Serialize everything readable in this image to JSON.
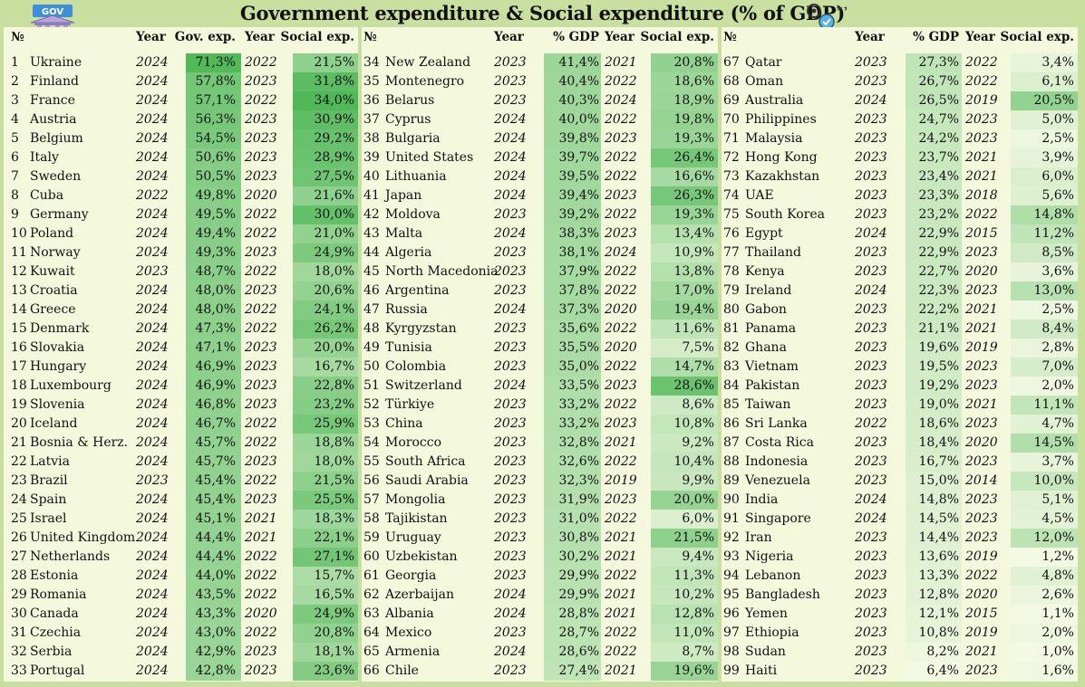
{
  "title": "Government expenditure & Social expenditure (% of GDP)",
  "logo_text": "GOV",
  "icons": {
    "left": "government-building-icon",
    "right": "hand-gear-coin-icon"
  },
  "colors": {
    "accent_green": "#4cb64c",
    "background": "#f4f8dc",
    "frame": "#c8dfa0"
  },
  "columns": [
    {
      "rank": "№",
      "year1": "Year",
      "value1": "Gov. exp.",
      "year2": "Year",
      "value2": "Social exp."
    },
    {
      "rank": "№",
      "year1": "Year",
      "value1": "% GDP",
      "year2": "Year",
      "value2": "Social exp."
    },
    {
      "rank": "№",
      "year1": "Year",
      "value1": "% GDP",
      "year2": "Year",
      "value2": "Social exp."
    }
  ],
  "rows": [
    [
      "1",
      "Ukraine",
      "2024",
      "71,3%",
      "2022",
      "21,5%"
    ],
    [
      "2",
      "Finland",
      "2024",
      "57,8%",
      "2023",
      "31,8%"
    ],
    [
      "3",
      "France",
      "2024",
      "57,1%",
      "2022",
      "34,0%"
    ],
    [
      "4",
      "Austria",
      "2024",
      "56,3%",
      "2023",
      "30,9%"
    ],
    [
      "5",
      "Belgium",
      "2024",
      "54,5%",
      "2023",
      "29,2%"
    ],
    [
      "6",
      "Italy",
      "2024",
      "50,6%",
      "2023",
      "28,9%"
    ],
    [
      "7",
      "Sweden",
      "2024",
      "50,5%",
      "2023",
      "27,5%"
    ],
    [
      "8",
      "Cuba",
      "2022",
      "49,8%",
      "2020",
      "21,6%"
    ],
    [
      "9",
      "Germany",
      "2024",
      "49,5%",
      "2022",
      "30,0%"
    ],
    [
      "10",
      "Poland",
      "2024",
      "49,4%",
      "2022",
      "21,0%"
    ],
    [
      "11",
      "Norway",
      "2024",
      "49,3%",
      "2023",
      "24,9%"
    ],
    [
      "12",
      "Kuwait",
      "2023",
      "48,7%",
      "2022",
      "18,0%"
    ],
    [
      "13",
      "Croatia",
      "2024",
      "48,0%",
      "2023",
      "20,6%"
    ],
    [
      "14",
      "Greece",
      "2024",
      "48,0%",
      "2022",
      "24,1%"
    ],
    [
      "15",
      "Denmark",
      "2024",
      "47,3%",
      "2022",
      "26,2%"
    ],
    [
      "16",
      "Slovakia",
      "2024",
      "47,1%",
      "2023",
      "20,0%"
    ],
    [
      "17",
      "Hungary",
      "2024",
      "46,9%",
      "2023",
      "16,7%"
    ],
    [
      "18",
      "Luxembourg",
      "2024",
      "46,9%",
      "2023",
      "22,8%"
    ],
    [
      "19",
      "Slovenia",
      "2024",
      "46,8%",
      "2023",
      "23,2%"
    ],
    [
      "20",
      "Iceland",
      "2024",
      "46,7%",
      "2022",
      "25,9%"
    ],
    [
      "21",
      "Bosnia & Herz.",
      "2024",
      "45,7%",
      "2022",
      "18,8%"
    ],
    [
      "22",
      "Latvia",
      "2024",
      "45,7%",
      "2023",
      "18,0%"
    ],
    [
      "23",
      "Brazil",
      "2023",
      "45,4%",
      "2022",
      "21,5%"
    ],
    [
      "24",
      "Spain",
      "2024",
      "45,4%",
      "2023",
      "25,5%"
    ],
    [
      "25",
      "Israel",
      "2024",
      "45,1%",
      "2021",
      "18,3%"
    ],
    [
      "26",
      "United Kingdom",
      "2024",
      "44,4%",
      "2021",
      "22,1%"
    ],
    [
      "27",
      "Netherlands",
      "2024",
      "44,4%",
      "2022",
      "27,1%"
    ],
    [
      "28",
      "Estonia",
      "2024",
      "44,0%",
      "2022",
      "15,7%"
    ],
    [
      "29",
      "Romania",
      "2024",
      "43,5%",
      "2022",
      "16,5%"
    ],
    [
      "30",
      "Canada",
      "2024",
      "43,3%",
      "2020",
      "24,9%"
    ],
    [
      "31",
      "Czechia",
      "2024",
      "43,0%",
      "2022",
      "20,8%"
    ],
    [
      "32",
      "Serbia",
      "2024",
      "42,9%",
      "2023",
      "18,1%"
    ],
    [
      "33",
      "Portugal",
      "2024",
      "42,8%",
      "2023",
      "23,6%"
    ],
    [
      "34",
      "New Zealand",
      "2023",
      "41,4%",
      "2021",
      "20,8%"
    ],
    [
      "35",
      "Montenegro",
      "2023",
      "40,4%",
      "2022",
      "18,6%"
    ],
    [
      "36",
      "Belarus",
      "2023",
      "40,3%",
      "2024",
      "18,9%"
    ],
    [
      "37",
      "Cyprus",
      "2024",
      "40,0%",
      "2022",
      "19,8%"
    ],
    [
      "38",
      "Bulgaria",
      "2024",
      "39,8%",
      "2023",
      "19,3%"
    ],
    [
      "39",
      "United States",
      "2024",
      "39,7%",
      "2022",
      "26,4%"
    ],
    [
      "40",
      "Lithuania",
      "2024",
      "39,5%",
      "2022",
      "16,6%"
    ],
    [
      "41",
      "Japan",
      "2024",
      "39,4%",
      "2023",
      "26,3%"
    ],
    [
      "42",
      "Moldova",
      "2023",
      "39,2%",
      "2022",
      "19,3%"
    ],
    [
      "43",
      "Malta",
      "2024",
      "38,3%",
      "2023",
      "13,4%"
    ],
    [
      "44",
      "Algeria",
      "2023",
      "38,1%",
      "2024",
      "10,9%"
    ],
    [
      "45",
      "North Macedonia",
      "2023",
      "37,9%",
      "2022",
      "13,8%"
    ],
    [
      "46",
      "Argentina",
      "2023",
      "37,8%",
      "2022",
      "17,0%"
    ],
    [
      "47",
      "Russia",
      "2024",
      "37,3%",
      "2020",
      "19,4%"
    ],
    [
      "48",
      "Kyrgyzstan",
      "2023",
      "35,6%",
      "2022",
      "11,6%"
    ],
    [
      "49",
      "Tunisia",
      "2023",
      "35,5%",
      "2020",
      "7,5%"
    ],
    [
      "50",
      "Colombia",
      "2023",
      "35,0%",
      "2022",
      "14,7%"
    ],
    [
      "51",
      "Switzerland",
      "2024",
      "33,5%",
      "2023",
      "28,6%"
    ],
    [
      "52",
      "Türkiye",
      "2023",
      "33,2%",
      "2022",
      "8,6%"
    ],
    [
      "53",
      "China",
      "2023",
      "33,2%",
      "2023",
      "10,8%"
    ],
    [
      "54",
      "Morocco",
      "2023",
      "32,8%",
      "2021",
      "9,2%"
    ],
    [
      "55",
      "South Africa",
      "2023",
      "32,6%",
      "2022",
      "10,4%"
    ],
    [
      "56",
      "Saudi Arabia",
      "2023",
      "32,3%",
      "2019",
      "9,9%"
    ],
    [
      "57",
      "Mongolia",
      "2023",
      "31,9%",
      "2023",
      "20,0%"
    ],
    [
      "58",
      "Tajikistan",
      "2023",
      "31,0%",
      "2022",
      "6,0%"
    ],
    [
      "59",
      "Uruguay",
      "2023",
      "30,8%",
      "2021",
      "21,5%"
    ],
    [
      "60",
      "Uzbekistan",
      "2023",
      "30,2%",
      "2021",
      "9,4%"
    ],
    [
      "61",
      "Georgia",
      "2023",
      "29,9%",
      "2022",
      "11,3%"
    ],
    [
      "62",
      "Azerbaijan",
      "2024",
      "29,9%",
      "2021",
      "10,2%"
    ],
    [
      "63",
      "Albania",
      "2024",
      "28,8%",
      "2021",
      "12,8%"
    ],
    [
      "64",
      "Mexico",
      "2023",
      "28,7%",
      "2022",
      "11,0%"
    ],
    [
      "65",
      "Armenia",
      "2024",
      "28,6%",
      "2022",
      "8,7%"
    ],
    [
      "66",
      "Chile",
      "2023",
      "27,4%",
      "2021",
      "19,6%"
    ],
    [
      "67",
      "Qatar",
      "2023",
      "27,3%",
      "2022",
      "3,4%"
    ],
    [
      "68",
      "Oman",
      "2023",
      "26,7%",
      "2022",
      "6,1%"
    ],
    [
      "69",
      "Australia",
      "2024",
      "26,5%",
      "2019",
      "20,5%"
    ],
    [
      "70",
      "Philippines",
      "2023",
      "24,7%",
      "2023",
      "5,0%"
    ],
    [
      "71",
      "Malaysia",
      "2023",
      "24,2%",
      "2023",
      "2,5%"
    ],
    [
      "72",
      "Hong Kong",
      "2023",
      "23,7%",
      "2021",
      "3,9%"
    ],
    [
      "73",
      "Kazakhstan",
      "2023",
      "23,4%",
      "2021",
      "6,0%"
    ],
    [
      "74",
      "UAE",
      "2023",
      "23,3%",
      "2018",
      "5,6%"
    ],
    [
      "75",
      "South Korea",
      "2023",
      "23,2%",
      "2022",
      "14,8%"
    ],
    [
      "76",
      "Egypt",
      "2024",
      "22,9%",
      "2015",
      "11,2%"
    ],
    [
      "77",
      "Thailand",
      "2023",
      "22,9%",
      "2023",
      "8,5%"
    ],
    [
      "78",
      "Kenya",
      "2023",
      "22,7%",
      "2020",
      "3,6%"
    ],
    [
      "79",
      "Ireland",
      "2024",
      "22,3%",
      "2023",
      "13,0%"
    ],
    [
      "80",
      "Gabon",
      "2023",
      "22,2%",
      "2021",
      "2,5%"
    ],
    [
      "81",
      "Panama",
      "2023",
      "21,1%",
      "2021",
      "8,4%"
    ],
    [
      "82",
      "Ghana",
      "2023",
      "19,6%",
      "2019",
      "2,8%"
    ],
    [
      "83",
      "Vietnam",
      "2023",
      "19,5%",
      "2023",
      "7,0%"
    ],
    [
      "84",
      "Pakistan",
      "2023",
      "19,2%",
      "2023",
      "2,0%"
    ],
    [
      "85",
      "Taiwan",
      "2023",
      "19,0%",
      "2021",
      "11,1%"
    ],
    [
      "86",
      "Sri Lanka",
      "2022",
      "18,6%",
      "2023",
      "4,7%"
    ],
    [
      "87",
      "Costa Rica",
      "2023",
      "18,4%",
      "2020",
      "14,5%"
    ],
    [
      "88",
      "Indonesia",
      "2023",
      "16,7%",
      "2023",
      "3,7%"
    ],
    [
      "89",
      "Venezuela",
      "2023",
      "15,0%",
      "2014",
      "10,0%"
    ],
    [
      "90",
      "India",
      "2024",
      "14,8%",
      "2023",
      "5,1%"
    ],
    [
      "91",
      "Singapore",
      "2024",
      "14,5%",
      "2023",
      "4,5%"
    ],
    [
      "92",
      "Iran",
      "2023",
      "14,4%",
      "2023",
      "12,0%"
    ],
    [
      "93",
      "Nigeria",
      "2023",
      "13,6%",
      "2019",
      "1,2%"
    ],
    [
      "94",
      "Lebanon",
      "2023",
      "13,3%",
      "2022",
      "4,8%"
    ],
    [
      "95",
      "Bangladesh",
      "2023",
      "12,8%",
      "2020",
      "2,6%"
    ],
    [
      "96",
      "Yemen",
      "2023",
      "12,1%",
      "2015",
      "1,1%"
    ],
    [
      "97",
      "Ethiopia",
      "2023",
      "10,8%",
      "2019",
      "2,0%"
    ],
    [
      "98",
      "Sudan",
      "2023",
      "8,2%",
      "2021",
      "1,0%"
    ],
    [
      "99",
      "Haiti",
      "2023",
      "6,4%",
      "2023",
      "1,6%"
    ]
  ]
}
